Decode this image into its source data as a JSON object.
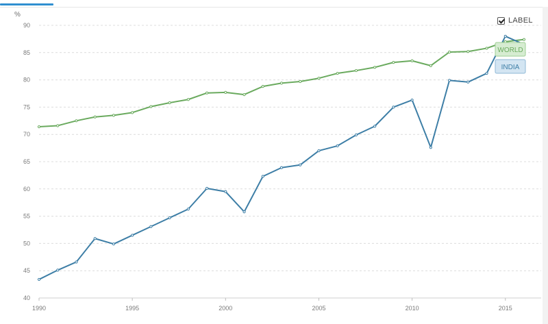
{
  "ui": {
    "y_unit": "%",
    "label_toggle": "LABEL"
  },
  "colors": {
    "world": "#6aaa5e",
    "india": "#3d7ea6",
    "world_tag_bg": "#d6ecd1",
    "india_tag_bg": "#d3e5f2",
    "grid": "#dcdcdc"
  },
  "chart_data": {
    "type": "line",
    "x": [
      1990,
      1991,
      1992,
      1993,
      1994,
      1995,
      1996,
      1997,
      1998,
      1999,
      2000,
      2001,
      2002,
      2003,
      2004,
      2005,
      2006,
      2007,
      2008,
      2009,
      2010,
      2011,
      2012,
      2013,
      2014,
      2015,
      2016
    ],
    "series": [
      {
        "name": "WORLD",
        "values": [
          71.4,
          71.6,
          72.5,
          73.2,
          73.5,
          74.0,
          75.1,
          75.8,
          76.4,
          77.6,
          77.7,
          77.3,
          78.8,
          79.4,
          79.7,
          80.3,
          81.2,
          81.7,
          82.3,
          83.2,
          83.5,
          82.6,
          85.1,
          85.2,
          85.8,
          87.0,
          87.4
        ]
      },
      {
        "name": "INDIA",
        "values": [
          43.4,
          45.1,
          46.6,
          50.9,
          49.9,
          51.5,
          53.1,
          54.7,
          56.3,
          60.1,
          59.5,
          55.8,
          62.3,
          63.9,
          64.4,
          67.0,
          67.9,
          69.9,
          71.5,
          75.0,
          76.3,
          67.6,
          79.9,
          79.6,
          81.2,
          88.0,
          86.5
        ]
      }
    ],
    "xticks": [
      1990,
      1995,
      2000,
      2005,
      2010,
      2015
    ],
    "yticks": [
      40,
      45,
      50,
      55,
      60,
      65,
      70,
      75,
      80,
      85,
      90
    ],
    "xlim": [
      1990,
      2016
    ],
    "ylim": [
      40,
      90
    ],
    "ylabel": "%",
    "grid": true
  }
}
